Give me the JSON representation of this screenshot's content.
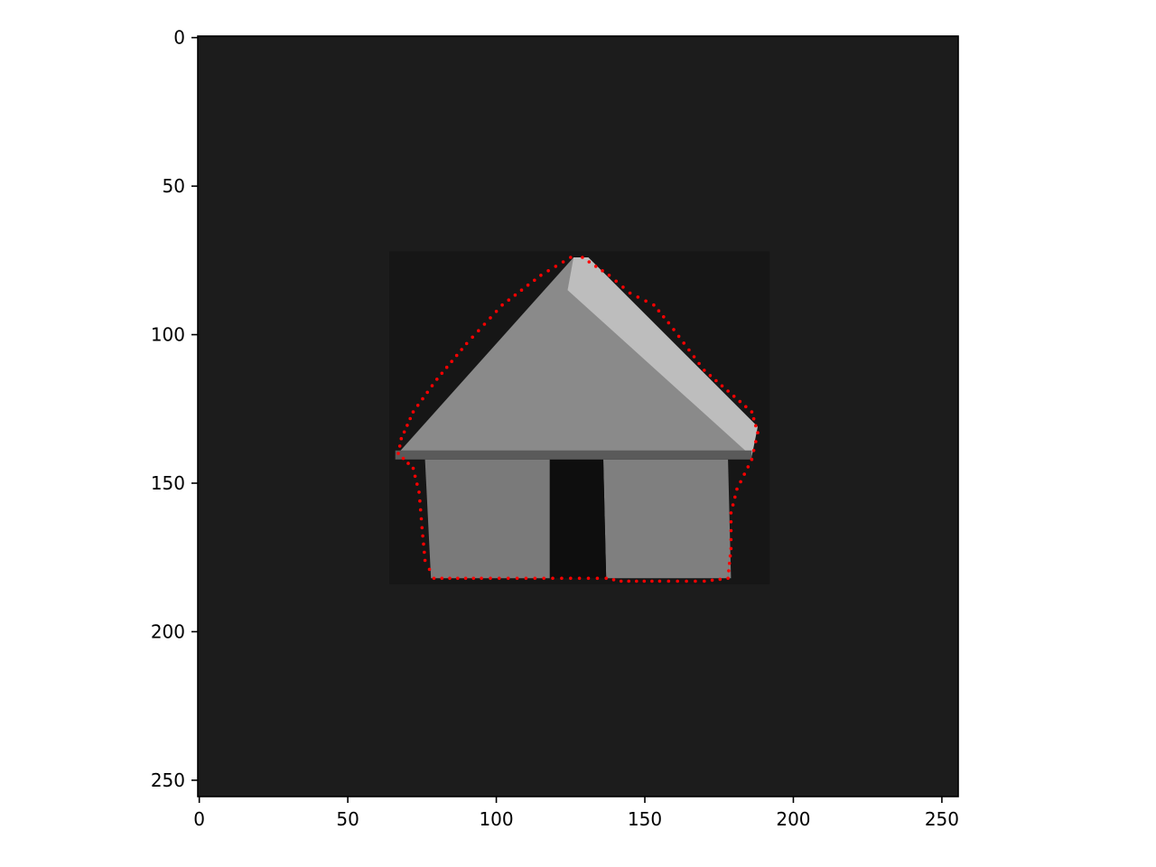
{
  "image": {
    "width": 256,
    "height": 256,
    "background_gray": "#1c1c1c",
    "subject": "gray block house (triangular roof on two rectangular walls)"
  },
  "axes": {
    "x_ticks": [
      0,
      50,
      100,
      150,
      200,
      250
    ],
    "y_ticks": [
      0,
      50,
      100,
      150,
      200,
      250
    ],
    "x_range": [
      -0.5,
      255.5
    ],
    "y_range": [
      255.5,
      -0.5
    ],
    "x_tick_labels": [
      "0",
      "50",
      "100",
      "150",
      "200",
      "250"
    ],
    "y_tick_labels": [
      "0",
      "50",
      "100",
      "150",
      "200",
      "250"
    ]
  },
  "contour": {
    "color": "#ff0000",
    "style": "dotted",
    "points": [
      [
        125,
        74
      ],
      [
        115,
        80
      ],
      [
        102,
        90
      ],
      [
        90,
        103
      ],
      [
        80,
        115
      ],
      [
        72,
        126
      ],
      [
        68,
        135
      ],
      [
        67,
        140
      ],
      [
        72,
        145
      ],
      [
        74,
        153
      ],
      [
        75,
        165
      ],
      [
        76,
        176
      ],
      [
        79,
        182
      ],
      [
        95,
        182
      ],
      [
        110,
        182
      ],
      [
        125,
        182
      ],
      [
        137,
        182
      ],
      [
        142,
        183
      ],
      [
        155,
        183
      ],
      [
        170,
        183
      ],
      [
        178,
        182
      ],
      [
        179,
        172
      ],
      [
        179,
        160
      ],
      [
        181,
        152
      ],
      [
        186,
        142
      ],
      [
        188,
        133
      ],
      [
        186,
        126
      ],
      [
        170,
        112
      ],
      [
        158,
        96
      ],
      [
        153,
        90
      ],
      [
        145,
        86
      ],
      [
        138,
        80
      ],
      [
        129,
        74
      ]
    ]
  }
}
